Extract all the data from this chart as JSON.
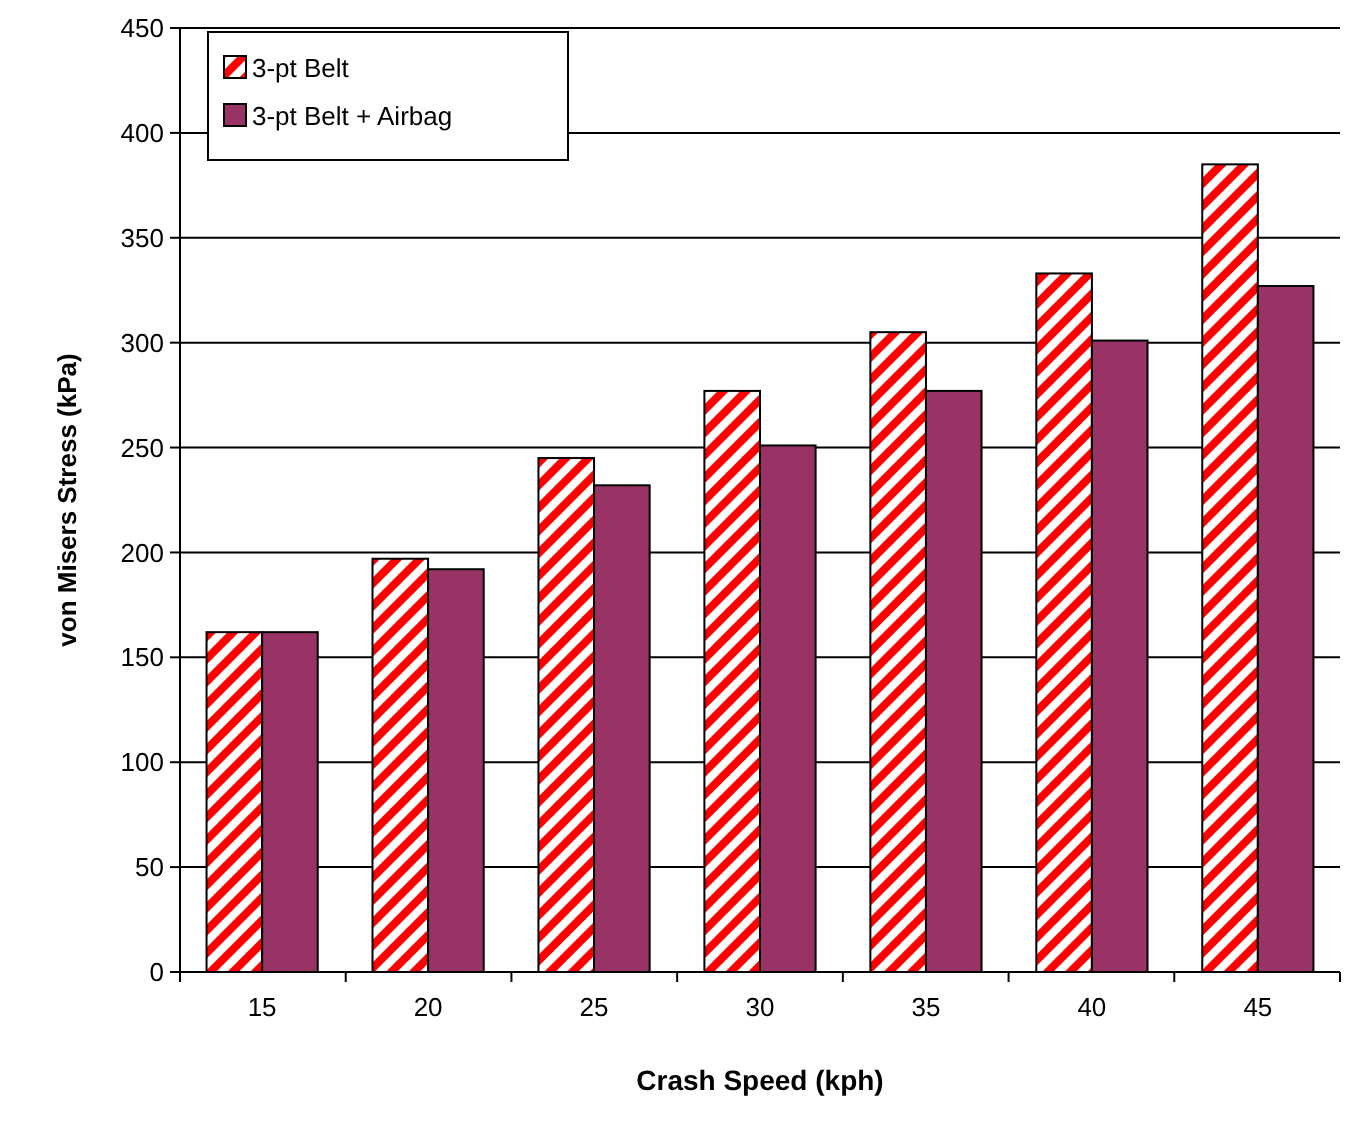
{
  "chart_data": {
    "type": "bar",
    "xlabel": "Crash Speed (kph)",
    "ylabel": "von Misers Stress (kPa)",
    "categories": [
      "15",
      "20",
      "25",
      "30",
      "35",
      "40",
      "45"
    ],
    "series": [
      {
        "name": "3-pt Belt",
        "color": "#ff0000",
        "values": [
          162,
          197,
          245,
          277,
          305,
          333,
          385
        ]
      },
      {
        "name": "3-pt Belt + Airbag",
        "color": "#993366",
        "values": [
          162,
          192,
          232,
          251,
          277,
          301,
          327
        ]
      }
    ],
    "ylim": [
      0,
      450
    ],
    "yticks": [
      0,
      50,
      100,
      150,
      200,
      250,
      300,
      350,
      400,
      450
    ],
    "grid": "y",
    "legend": "top left"
  }
}
